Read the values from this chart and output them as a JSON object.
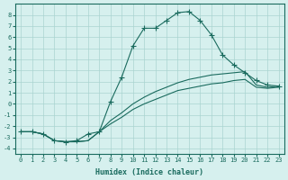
{
  "xlabel": "Humidex (Indice chaleur)",
  "ylabel": "",
  "bg_color": "#d6f0ee",
  "grid_color": "#aad4d0",
  "line_color": "#1a6b5e",
  "xlim": [
    -0.5,
    23.5
  ],
  "ylim": [
    -4.5,
    9
  ],
  "xticks": [
    0,
    1,
    2,
    3,
    4,
    5,
    6,
    7,
    8,
    9,
    10,
    11,
    12,
    13,
    14,
    15,
    16,
    17,
    18,
    19,
    20,
    21,
    22,
    23
  ],
  "yticks": [
    -4,
    -3,
    -2,
    -1,
    0,
    1,
    2,
    3,
    4,
    5,
    6,
    7,
    8
  ],
  "series": [
    {
      "x": [
        0,
        1,
        2,
        3,
        4,
        5,
        6,
        7,
        8,
        9,
        10,
        11,
        12,
        13,
        14,
        15,
        16,
        17,
        18,
        19,
        20,
        21,
        22,
        23
      ],
      "y": [
        -2.5,
        -2.5,
        -2.7,
        -3.3,
        -3.4,
        -3.3,
        -2.7,
        -2.5,
        0.2,
        2.4,
        5.2,
        6.8,
        6.8,
        7.5,
        8.2,
        8.3,
        7.5,
        6.2,
        4.4,
        3.5,
        2.8,
        2.1,
        1.7,
        1.6
      ],
      "marker": "+"
    },
    {
      "x": [
        0,
        1,
        2,
        3,
        4,
        5,
        6,
        7,
        8,
        9,
        10,
        11,
        12,
        13,
        14,
        15,
        16,
        17,
        18,
        19,
        20,
        21,
        22,
        23
      ],
      "y": [
        -2.5,
        -2.5,
        -2.7,
        -3.3,
        -3.4,
        -3.4,
        -3.3,
        -2.5,
        -1.5,
        -0.8,
        0.0,
        0.6,
        1.1,
        1.5,
        1.9,
        2.2,
        2.4,
        2.6,
        2.7,
        2.8,
        2.9,
        1.7,
        1.5,
        1.6
      ],
      "marker": null
    },
    {
      "x": [
        0,
        1,
        2,
        3,
        4,
        5,
        6,
        7,
        8,
        9,
        10,
        11,
        12,
        13,
        14,
        15,
        16,
        17,
        18,
        19,
        20,
        21,
        22,
        23
      ],
      "y": [
        -2.5,
        -2.5,
        -2.7,
        -3.3,
        -3.4,
        -3.4,
        -3.3,
        -2.5,
        -1.8,
        -1.2,
        -0.5,
        0.0,
        0.4,
        0.8,
        1.2,
        1.4,
        1.6,
        1.8,
        1.9,
        2.1,
        2.2,
        1.5,
        1.4,
        1.5
      ],
      "marker": null
    }
  ]
}
